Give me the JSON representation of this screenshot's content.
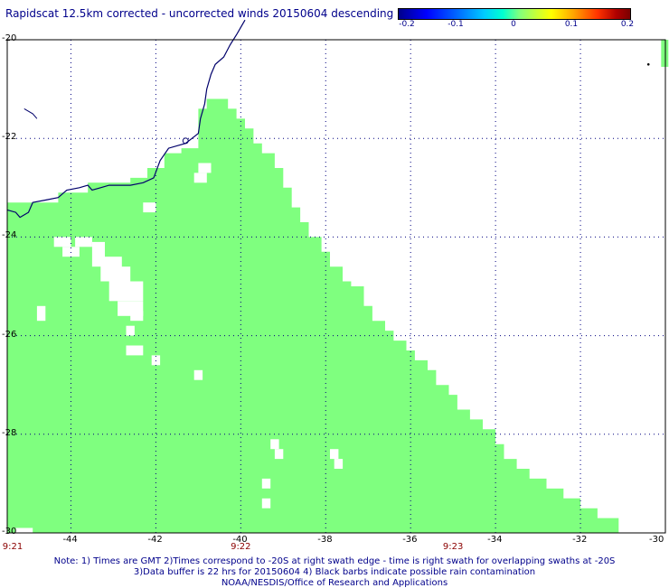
{
  "title": "Rapidscat 12.5km corrected - uncorrected winds 20150604 descending",
  "colorbar": {
    "ticks": [
      "-0.2",
      "-0.1",
      "0",
      "0.1",
      "0.2"
    ],
    "tick_values": [
      -0.2,
      -0.1,
      0,
      0.1,
      0.2
    ],
    "range": [
      -0.2,
      0.2
    ]
  },
  "colors": {
    "swath": "#7fff7f",
    "coastline": "#00006b",
    "grid": "#000080"
  },
  "chart_data": {
    "type": "heatmap",
    "lon_range": [
      -45.5,
      -30
    ],
    "lat_range": [
      -30,
      -20
    ],
    "lon_ticks": [
      -44,
      -42,
      -40,
      -38,
      -36,
      -34,
      -32,
      -30
    ],
    "lat_ticks": [
      -20,
      -22,
      -24,
      -26,
      -28,
      -30
    ],
    "lon_tick_labels": [
      "-44",
      "-42",
      "-40",
      "-38",
      "-36",
      "-34",
      "-32",
      "-30"
    ],
    "lat_tick_labels": [
      "-20",
      "-22",
      "-24",
      "-26",
      "-28",
      "-30"
    ],
    "value_shown": 0,
    "swath_edge": [
      [
        -45.5,
        -30
      ],
      [
        -31.1,
        -30
      ],
      [
        -31.1,
        -29.7
      ],
      [
        -31.6,
        -29.7
      ],
      [
        -31.6,
        -29.5
      ],
      [
        -32.0,
        -29.5
      ],
      [
        -32.0,
        -29.3
      ],
      [
        -32.4,
        -29.3
      ],
      [
        -32.4,
        -29.1
      ],
      [
        -32.8,
        -29.1
      ],
      [
        -32.8,
        -28.9
      ],
      [
        -33.2,
        -28.9
      ],
      [
        -33.2,
        -28.7
      ],
      [
        -33.5,
        -28.7
      ],
      [
        -33.5,
        -28.5
      ],
      [
        -33.8,
        -28.5
      ],
      [
        -33.8,
        -28.2
      ],
      [
        -34.0,
        -28.2
      ],
      [
        -34.0,
        -27.9
      ],
      [
        -34.3,
        -27.9
      ],
      [
        -34.3,
        -27.7
      ],
      [
        -34.6,
        -27.7
      ],
      [
        -34.6,
        -27.5
      ],
      [
        -34.9,
        -27.5
      ],
      [
        -34.9,
        -27.2
      ],
      [
        -35.1,
        -27.2
      ],
      [
        -35.1,
        -27.0
      ],
      [
        -35.4,
        -27.0
      ],
      [
        -35.4,
        -26.7
      ],
      [
        -35.6,
        -26.7
      ],
      [
        -35.6,
        -26.5
      ],
      [
        -35.9,
        -26.5
      ],
      [
        -35.9,
        -26.3
      ],
      [
        -36.1,
        -26.3
      ],
      [
        -36.1,
        -26.1
      ],
      [
        -36.4,
        -26.1
      ],
      [
        -36.4,
        -25.9
      ],
      [
        -36.6,
        -25.9
      ],
      [
        -36.6,
        -25.7
      ],
      [
        -36.9,
        -25.7
      ],
      [
        -36.9,
        -25.4
      ],
      [
        -37.1,
        -25.4
      ],
      [
        -37.1,
        -25.0
      ],
      [
        -37.4,
        -25.0
      ],
      [
        -37.4,
        -24.9
      ],
      [
        -37.6,
        -24.9
      ],
      [
        -37.6,
        -24.6
      ],
      [
        -37.9,
        -24.6
      ],
      [
        -37.9,
        -24.3
      ],
      [
        -38.1,
        -24.3
      ],
      [
        -38.1,
        -24.0
      ],
      [
        -38.4,
        -24.0
      ],
      [
        -38.4,
        -23.7
      ],
      [
        -38.6,
        -23.7
      ],
      [
        -38.6,
        -23.4
      ],
      [
        -38.8,
        -23.4
      ],
      [
        -38.8,
        -23.0
      ],
      [
        -39.0,
        -23.0
      ],
      [
        -39.0,
        -22.6
      ],
      [
        -39.2,
        -22.6
      ],
      [
        -39.2,
        -22.3
      ],
      [
        -39.5,
        -22.3
      ],
      [
        -39.5,
        -22.1
      ],
      [
        -39.7,
        -22.1
      ],
      [
        -39.7,
        -21.8
      ],
      [
        -39.9,
        -21.8
      ],
      [
        -39.9,
        -21.6
      ],
      [
        -40.1,
        -21.6
      ],
      [
        -40.1,
        -21.4
      ],
      [
        -40.3,
        -21.4
      ],
      [
        -40.3,
        -21.2
      ],
      [
        -40.8,
        -21.2
      ],
      [
        -40.8,
        -21.4
      ],
      [
        -41.0,
        -21.4
      ],
      [
        -41.0,
        -22.2
      ],
      [
        -41.4,
        -22.2
      ],
      [
        -41.4,
        -22.3
      ],
      [
        -41.8,
        -22.3
      ],
      [
        -41.8,
        -22.6
      ],
      [
        -42.2,
        -22.6
      ],
      [
        -42.2,
        -22.8
      ],
      [
        -42.6,
        -22.8
      ],
      [
        -42.6,
        -22.9
      ],
      [
        -43.6,
        -22.9
      ],
      [
        -43.6,
        -23.1
      ],
      [
        -44.3,
        -23.1
      ],
      [
        -44.3,
        -23.3
      ],
      [
        -45.5,
        -23.3
      ]
    ],
    "gaps": [
      [
        -44.4,
        -24.0,
        0.4,
        0.2
      ],
      [
        -44.2,
        -24.2,
        0.4,
        0.2
      ],
      [
        -43.9,
        -24.0,
        0.4,
        0.2
      ],
      [
        -43.5,
        -24.1,
        0.3,
        0.5
      ],
      [
        -43.3,
        -24.4,
        0.5,
        0.5
      ],
      [
        -43.0,
        -24.6,
        0.4,
        0.3
      ],
      [
        -43.1,
        -24.9,
        0.8,
        0.4
      ],
      [
        -42.9,
        -25.3,
        0.6,
        0.3
      ],
      [
        -42.6,
        -25.5,
        0.3,
        0.2
      ],
      [
        -44.8,
        -25.4,
        0.2,
        0.3
      ],
      [
        -42.7,
        -25.8,
        0.2,
        0.2
      ],
      [
        -42.7,
        -26.2,
        0.4,
        0.2
      ],
      [
        -42.1,
        -26.4,
        0.2,
        0.2
      ],
      [
        -41.1,
        -26.7,
        0.2,
        0.2
      ],
      [
        -41.0,
        -22.5,
        0.3,
        0.2
      ],
      [
        -41.1,
        -22.7,
        0.3,
        0.2
      ],
      [
        -42.3,
        -23.3,
        0.3,
        0.2
      ],
      [
        -39.3,
        -28.1,
        0.2,
        0.2
      ],
      [
        -39.2,
        -28.3,
        0.2,
        0.2
      ],
      [
        -37.9,
        -28.3,
        0.2,
        0.2
      ],
      [
        -37.8,
        -28.5,
        0.2,
        0.2
      ],
      [
        -39.5,
        -28.9,
        0.2,
        0.2
      ],
      [
        -39.5,
        -29.3,
        0.2,
        0.2
      ],
      [
        -45.3,
        -29.9,
        0.4,
        0.1
      ]
    ]
  },
  "time_labels": [
    "9:21",
    "9:22",
    "9:23"
  ],
  "time_label_lons": [
    -45.5,
    -40,
    -35
  ],
  "notes": [
    "Note: 1) Times are GMT 2)Times correspond to -20S at right swath edge - time is right swath for overlapping swaths at -20S",
    "3)Data buffer is 22 hrs for 20150604 4) Black barbs indicate possible rain contamination",
    "NOAA/NESDIS/Office of Research and Applications"
  ]
}
